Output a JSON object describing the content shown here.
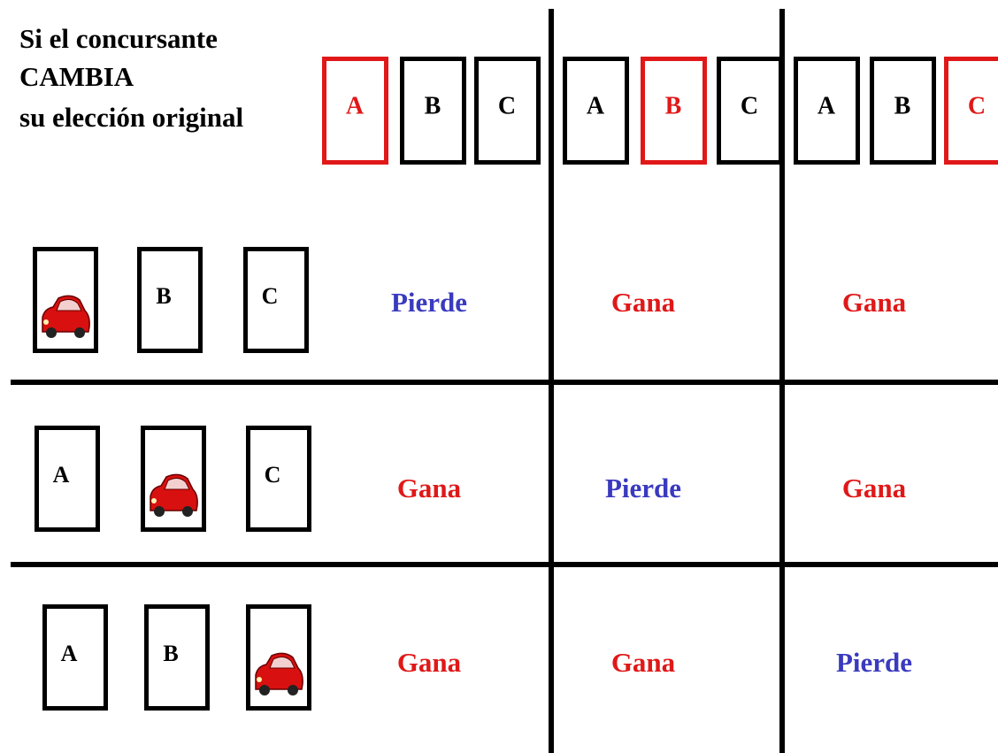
{
  "header": {
    "title_lines": [
      "Si el concursante",
      "CAMBIA",
      "su elección original"
    ],
    "groups": [
      {
        "doors": [
          "A",
          "B",
          "C"
        ]
      },
      {
        "doors": [
          "A",
          "B",
          "C"
        ]
      },
      {
        "doors": [
          "A",
          "B",
          "C"
        ]
      }
    ]
  },
  "rows": [
    {
      "doors": [
        null,
        "B",
        "C"
      ],
      "results": [
        "Pierde",
        "Gana",
        "Gana"
      ],
      "colors": [
        "#3a3abf",
        "#e01818",
        "#e01818"
      ]
    },
    {
      "doors": [
        "A",
        null,
        "C"
      ],
      "results": [
        "Gana",
        "Pierde",
        "Gana"
      ],
      "colors": [
        "#e01818",
        "#3a3abf",
        "#e01818"
      ]
    },
    {
      "doors": [
        "A",
        "B",
        null
      ],
      "results": [
        "Gana",
        "Gana",
        "Pierde"
      ],
      "colors": [
        "#e01818",
        "#e01818",
        "#3a3abf"
      ]
    }
  ]
}
